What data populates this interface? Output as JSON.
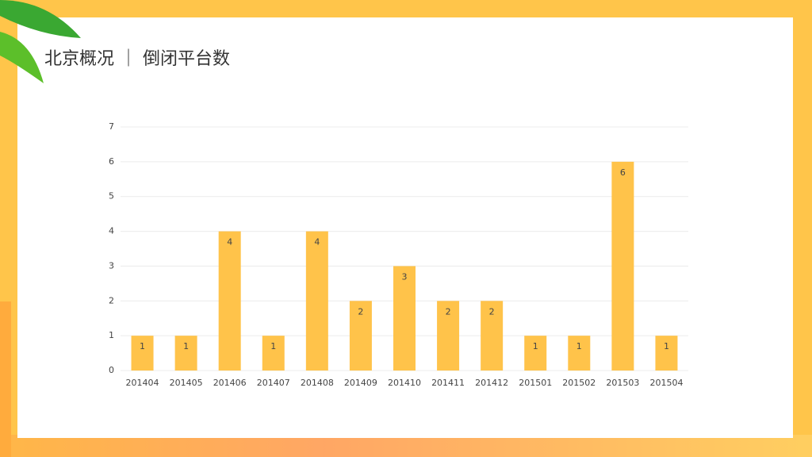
{
  "chart_data": {
    "type": "bar",
    "title": "北京概况 ｜ 倒闭平台数",
    "categories": [
      "201404",
      "201405",
      "201406",
      "201407",
      "201408",
      "201409",
      "201410",
      "201411",
      "201412",
      "201501",
      "201502",
      "201503",
      "201504"
    ],
    "values": [
      1,
      1,
      4,
      1,
      4,
      2,
      3,
      2,
      2,
      1,
      1,
      6,
      1
    ],
    "color": "#ffc34a",
    "ylim": [
      0,
      7
    ],
    "yticks": [
      0,
      1,
      2,
      3,
      4,
      5,
      6,
      7
    ],
    "grid": true
  }
}
